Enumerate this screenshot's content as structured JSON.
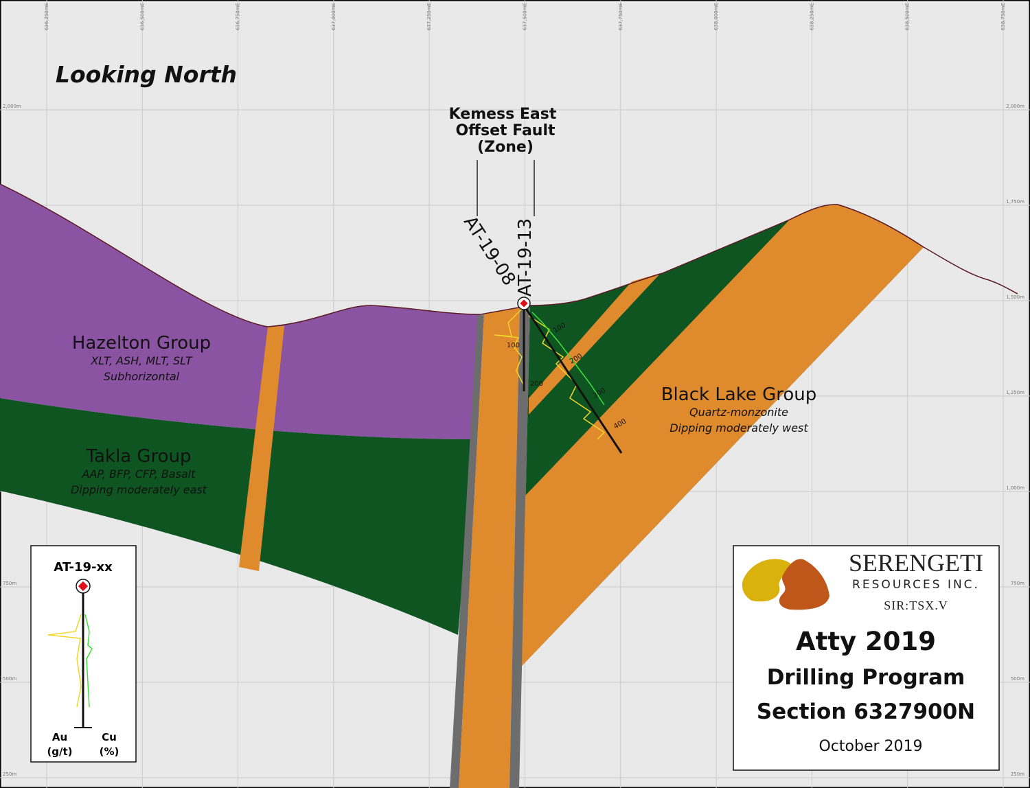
{
  "axes": {
    "easting": [
      "636,250mE",
      "636,500mE",
      "636,750mE",
      "637,000mE",
      "637,250mE",
      "637,500mE",
      "637,750mE",
      "638,000mE",
      "638,250mE",
      "638,500mE",
      "638,750mE"
    ],
    "elevation": [
      "2,000m",
      "1,750m",
      "1,500m",
      "1,250m",
      "1,000m",
      "750m",
      "500m",
      "250m"
    ]
  },
  "view": "Looking North",
  "fault": {
    "lines": [
      "Kemess East",
      "Offset Fault",
      "(Zone)"
    ]
  },
  "holes": [
    {
      "name": "AT-19-08",
      "depths": [
        "100",
        "200"
      ]
    },
    {
      "name": "AT-19-13",
      "depths": [
        "100",
        "200",
        "300",
        "400"
      ]
    }
  ],
  "units": [
    {
      "name": "Hazelton Group",
      "lines": [
        "XLT, ASH, MLT, SLT",
        "Subhorizontal"
      ]
    },
    {
      "name": "Takla Group",
      "lines": [
        "AAP, BFP, CFP, Basalt",
        "Dipping moderately east"
      ]
    },
    {
      "name": "Black Lake Group",
      "lines": [
        "Quartz-monzonite",
        "Dipping moderately west"
      ]
    }
  ],
  "legend": {
    "title": "AT-19-xx",
    "au": [
      "Au",
      "(g/t)"
    ],
    "cu": [
      "Cu",
      "(%)"
    ]
  },
  "logo": {
    "name": "SERENGETI",
    "sub": "RESOURCES INC.",
    "ticker": "SIR:TSX.V"
  },
  "title": {
    "lines": [
      "Atty 2019",
      "Drilling Program",
      "Section 6327900N"
    ],
    "date": "October 2019"
  }
}
